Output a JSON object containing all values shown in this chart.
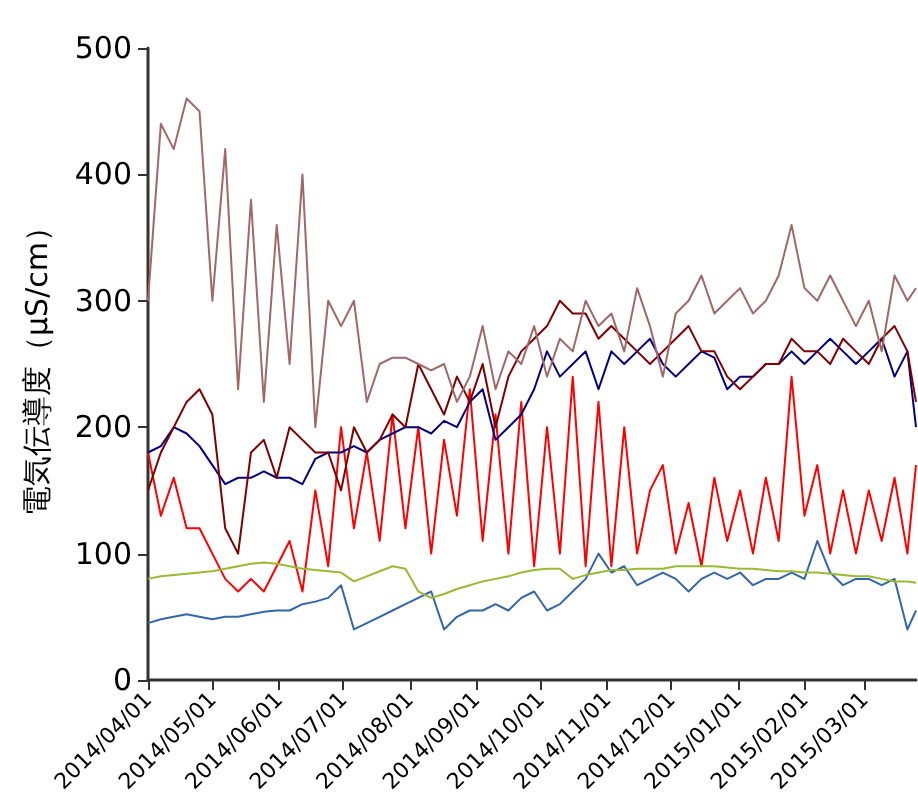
{
  "chart_data": {
    "type": "line",
    "ylabel": "電気伝導度（μS/cm）",
    "x": [
      "2014-04-01",
      "2014-04-07",
      "2014-04-13",
      "2014-04-19",
      "2014-04-25",
      "2014-05-01",
      "2014-05-07",
      "2014-05-13",
      "2014-05-19",
      "2014-05-25",
      "2014-05-31",
      "2014-06-06",
      "2014-06-12",
      "2014-06-18",
      "2014-06-24",
      "2014-06-30",
      "2014-07-06",
      "2014-07-12",
      "2014-07-18",
      "2014-07-24",
      "2014-07-30",
      "2014-08-05",
      "2014-08-11",
      "2014-08-17",
      "2014-08-23",
      "2014-08-29",
      "2014-09-04",
      "2014-09-10",
      "2014-09-16",
      "2014-09-22",
      "2014-09-28",
      "2014-10-04",
      "2014-10-10",
      "2014-10-16",
      "2014-10-22",
      "2014-10-28",
      "2014-11-03",
      "2014-11-09",
      "2014-11-15",
      "2014-11-21",
      "2014-11-27",
      "2014-12-03",
      "2014-12-09",
      "2014-12-15",
      "2014-12-21",
      "2014-12-27",
      "2015-01-02",
      "2015-01-08",
      "2015-01-14",
      "2015-01-20",
      "2015-01-26",
      "2015-02-01",
      "2015-02-07",
      "2015-02-13",
      "2015-02-19",
      "2015-02-25",
      "2015-03-03",
      "2015-03-09",
      "2015-03-15",
      "2015-03-21",
      "2015-03-25"
    ],
    "series": [
      {
        "color": "#ff0000",
        "values": [
          180,
          130,
          160,
          120,
          120,
          100,
          80,
          70,
          80,
          70,
          90,
          110,
          70,
          150,
          90,
          200,
          120,
          180,
          110,
          210,
          120,
          200,
          100,
          190,
          130,
          230,
          110,
          210,
          100,
          220,
          90,
          200,
          100,
          240,
          90,
          220,
          90,
          200,
          100,
          150,
          170,
          100,
          140,
          90,
          160,
          110,
          150,
          100,
          160,
          110,
          240,
          130,
          170,
          100,
          150,
          100,
          150,
          110,
          160,
          100,
          170
        ]
      },
      {
        "color": "#000080",
        "values": [
          180,
          185,
          200,
          195,
          185,
          170,
          155,
          160,
          160,
          165,
          160,
          160,
          155,
          175,
          180,
          180,
          185,
          180,
          190,
          195,
          200,
          200,
          195,
          205,
          200,
          220,
          230,
          190,
          200,
          210,
          230,
          260,
          240,
          250,
          260,
          230,
          260,
          250,
          260,
          270,
          250,
          240,
          250,
          260,
          255,
          230,
          240,
          240,
          250,
          250,
          260,
          250,
          260,
          270,
          260,
          250,
          260,
          270,
          240,
          260,
          200
        ]
      },
      {
        "color": "#800000",
        "values": [
          150,
          180,
          200,
          220,
          230,
          210,
          120,
          100,
          180,
          190,
          160,
          200,
          190,
          180,
          180,
          150,
          200,
          180,
          190,
          210,
          200,
          250,
          230,
          210,
          240,
          220,
          250,
          200,
          240,
          260,
          270,
          280,
          300,
          290,
          290,
          270,
          280,
          270,
          260,
          250,
          260,
          270,
          280,
          260,
          260,
          240,
          230,
          240,
          250,
          250,
          270,
          260,
          260,
          250,
          270,
          260,
          250,
          270,
          280,
          260,
          220
        ]
      },
      {
        "color": "#3366aa",
        "values": [
          45,
          48,
          50,
          52,
          50,
          48,
          50,
          50,
          52,
          54,
          55,
          55,
          60,
          62,
          65,
          75,
          40,
          45,
          50,
          55,
          60,
          65,
          70,
          40,
          50,
          55,
          55,
          60,
          55,
          65,
          70,
          55,
          60,
          70,
          80,
          100,
          85,
          90,
          75,
          80,
          85,
          80,
          70,
          80,
          85,
          80,
          85,
          75,
          80,
          80,
          85,
          80,
          110,
          85,
          75,
          80,
          80,
          75,
          80,
          40,
          55
        ]
      },
      {
        "color": "#99bb33",
        "values": [
          80,
          82,
          83,
          84,
          85,
          86,
          88,
          90,
          92,
          93,
          92,
          90,
          88,
          87,
          86,
          85,
          78,
          82,
          86,
          90,
          88,
          70,
          65,
          68,
          72,
          75,
          78,
          80,
          82,
          85,
          87,
          88,
          88,
          80,
          83,
          85,
          87,
          87,
          88,
          88,
          88,
          90,
          90,
          90,
          90,
          89,
          88,
          88,
          87,
          86,
          86,
          85,
          85,
          84,
          83,
          82,
          82,
          80,
          78,
          78,
          77
        ]
      },
      {
        "color": "#a06868",
        "values": [
          300,
          440,
          420,
          460,
          450,
          300,
          420,
          230,
          380,
          220,
          360,
          250,
          400,
          200,
          300,
          280,
          300,
          220,
          250,
          255,
          255,
          250,
          245,
          250,
          220,
          240,
          280,
          230,
          260,
          250,
          280,
          240,
          270,
          260,
          300,
          280,
          290,
          260,
          310,
          280,
          240,
          290,
          300,
          320,
          290,
          300,
          310,
          290,
          300,
          320,
          360,
          310,
          300,
          320,
          300,
          280,
          300,
          260,
          320,
          300,
          310
        ]
      }
    ],
    "xlim": [
      "2014-04-01",
      "2015-03-25"
    ],
    "xticks": [
      {
        "value": "2014-04-01",
        "label": "2014/04/01"
      },
      {
        "value": "2014-05-01",
        "label": "2014/05/01"
      },
      {
        "value": "2014-06-01",
        "label": "2014/06/01"
      },
      {
        "value": "2014-07-01",
        "label": "2014/07/01"
      },
      {
        "value": "2014-08-01",
        "label": "2014/08/01"
      },
      {
        "value": "2014-09-01",
        "label": "2014/09/01"
      },
      {
        "value": "2014-10-01",
        "label": "2014/10/01"
      },
      {
        "value": "2014-11-01",
        "label": "2014/11/01"
      },
      {
        "value": "2014-12-01",
        "label": "2014/12/01"
      },
      {
        "value": "2015-01-01",
        "label": "2015/01/01"
      },
      {
        "value": "2015-02-01",
        "label": "2015/02/01"
      },
      {
        "value": "2015-03-01",
        "label": "2015/03/01"
      }
    ],
    "ylim": [
      0,
      500
    ],
    "yticks": [
      0,
      100,
      200,
      300,
      400,
      500
    ],
    "grid": false,
    "marker": "none",
    "line_style": "solid"
  }
}
